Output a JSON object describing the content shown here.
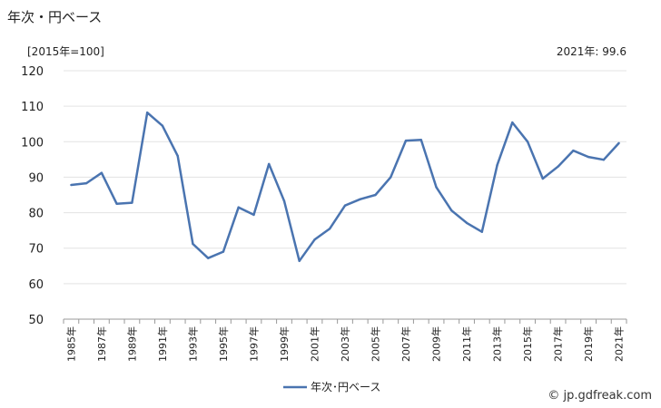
{
  "title": "年次・円ベース",
  "unit_label": "[2015年=100]",
  "latest_label": "2021年: 99.6",
  "credit": "© jp.gdfreak.com",
  "chart_data": {
    "type": "line",
    "x": [
      "1985年",
      "1986年",
      "1987年",
      "1988年",
      "1989年",
      "1990年",
      "1991年",
      "1992年",
      "1993年",
      "1994年",
      "1995年",
      "1996年",
      "1997年",
      "1998年",
      "1999年",
      "2000年",
      "2001年",
      "2002年",
      "2003年",
      "2004年",
      "2005年",
      "2006年",
      "2007年",
      "2008年",
      "2009年",
      "2010年",
      "2011年",
      "2012年",
      "2013年",
      "2014年",
      "2015年",
      "2016年",
      "2017年",
      "2018年",
      "2019年",
      "2020年",
      "2021年"
    ],
    "x_tick_labels": [
      "1985年",
      "1987年",
      "1989年",
      "1991年",
      "1993年",
      "1995年",
      "1997年",
      "1999年",
      "2001年",
      "2003年",
      "2005年",
      "2007年",
      "2009年",
      "2011年",
      "2013年",
      "2015年",
      "2017年",
      "2019年",
      "2021年"
    ],
    "series": [
      {
        "name": "年次･円ベース",
        "color": "#4a74b0",
        "values": [
          87.8,
          88.3,
          91.2,
          82.5,
          82.8,
          108.2,
          104.5,
          96.0,
          71.2,
          67.2,
          69.0,
          81.5,
          79.4,
          93.7,
          83.3,
          66.4,
          72.4,
          75.5,
          82.0,
          83.8,
          85.0,
          90.0,
          100.3,
          100.5,
          87.2,
          80.6,
          77.1,
          74.6,
          93.4,
          105.4,
          100.0,
          89.6,
          93.0,
          97.5,
          95.7,
          94.9,
          99.6
        ]
      }
    ],
    "ylim": [
      50,
      120
    ],
    "yticks": [
      50,
      60,
      70,
      80,
      90,
      100,
      110,
      120
    ],
    "grid": true,
    "legend": "bottom-center"
  }
}
